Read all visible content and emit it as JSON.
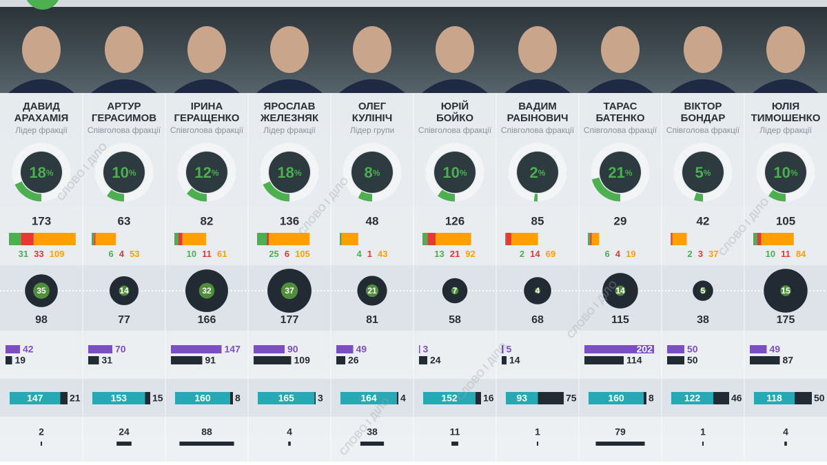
{
  "watermark": "СЛОВО І ДІЛО",
  "share_unit": "%",
  "people": [
    {
      "name": [
        "ДАВИД",
        "АРАХАМІЯ"
      ],
      "role": "Лідер фракції",
      "share": 18,
      "total": 173,
      "segments": [
        31,
        33,
        109
      ],
      "circle_inner": 35,
      "circle_outer": 98,
      "purple": 42,
      "dark": 19,
      "teal": 147,
      "teal_rest": 21,
      "last": 2
    },
    {
      "name": [
        "АРТУР",
        "ГЕРАСИМОВ"
      ],
      "role": "Співголова фракції",
      "share": 10,
      "total": 63,
      "segments": [
        6,
        4,
        53
      ],
      "circle_inner": 14,
      "circle_outer": 77,
      "purple": 70,
      "dark": 31,
      "teal": 153,
      "teal_rest": 15,
      "last": 24
    },
    {
      "name": [
        "ІРИНА",
        "ГЕРАЩЕНКО"
      ],
      "role": "Співголова фракції",
      "share": 12,
      "total": 82,
      "segments": [
        10,
        11,
        61
      ],
      "circle_inner": 32,
      "circle_outer": 166,
      "purple": 147,
      "dark": 91,
      "teal": 160,
      "teal_rest": 8,
      "last": 88
    },
    {
      "name": [
        "ЯРОСЛАВ",
        "ЖЕЛЕЗНЯК"
      ],
      "role": "Лідер фракції",
      "share": 18,
      "total": 136,
      "segments": [
        25,
        6,
        105
      ],
      "circle_inner": 37,
      "circle_outer": 177,
      "purple": 90,
      "dark": 109,
      "teal": 165,
      "teal_rest": 3,
      "last": 4
    },
    {
      "name": [
        "ОЛЕГ",
        "КУЛІНІЧ"
      ],
      "role": "Лідер групи",
      "share": 8,
      "total": 48,
      "segments": [
        4,
        1,
        43
      ],
      "circle_inner": 21,
      "circle_outer": 81,
      "purple": 49,
      "dark": 26,
      "teal": 164,
      "teal_rest": 4,
      "last": 38
    },
    {
      "name": [
        "ЮРІЙ",
        "БОЙКО"
      ],
      "role": "Співголова фракції",
      "share": 10,
      "total": 126,
      "segments": [
        13,
        21,
        92
      ],
      "circle_inner": 7,
      "circle_outer": 58,
      "purple": 3,
      "dark": 24,
      "teal": 152,
      "teal_rest": 16,
      "last": 11
    },
    {
      "name": [
        "ВАДИМ",
        "РАБІНОВИЧ"
      ],
      "role": "Співголова фракції",
      "share": 2,
      "total": 85,
      "segments": [
        2,
        14,
        69
      ],
      "circle_inner": 4,
      "circle_outer": 68,
      "purple": 5,
      "dark": 14,
      "teal": 93,
      "teal_rest": 75,
      "last": 1
    },
    {
      "name": [
        "ТАРАС",
        "БАТЕНКО"
      ],
      "role": "Співголова фракції",
      "share": 21,
      "total": 29,
      "segments": [
        6,
        4,
        19
      ],
      "circle_inner": 14,
      "circle_outer": 115,
      "purple": 202,
      "dark": 114,
      "teal": 160,
      "teal_rest": 8,
      "last": 79
    },
    {
      "name": [
        "ВІКТОР",
        "БОНДАР"
      ],
      "role": "Співголова фракції",
      "share": 5,
      "total": 42,
      "segments": [
        2,
        3,
        37
      ],
      "circle_inner": 5,
      "circle_outer": 38,
      "purple": 50,
      "dark": 50,
      "teal": 122,
      "teal_rest": 46,
      "last": 1
    },
    {
      "name": [
        "ЮЛІЯ",
        "ТИМОШЕНКО"
      ],
      "role": "Лідер фракції",
      "share": 10,
      "total": 105,
      "segments": [
        10,
        11,
        84
      ],
      "circle_inner": 15,
      "circle_outer": 175,
      "purple": 49,
      "dark": 87,
      "teal": 118,
      "teal_rest": 50,
      "last": 4
    }
  ]
}
